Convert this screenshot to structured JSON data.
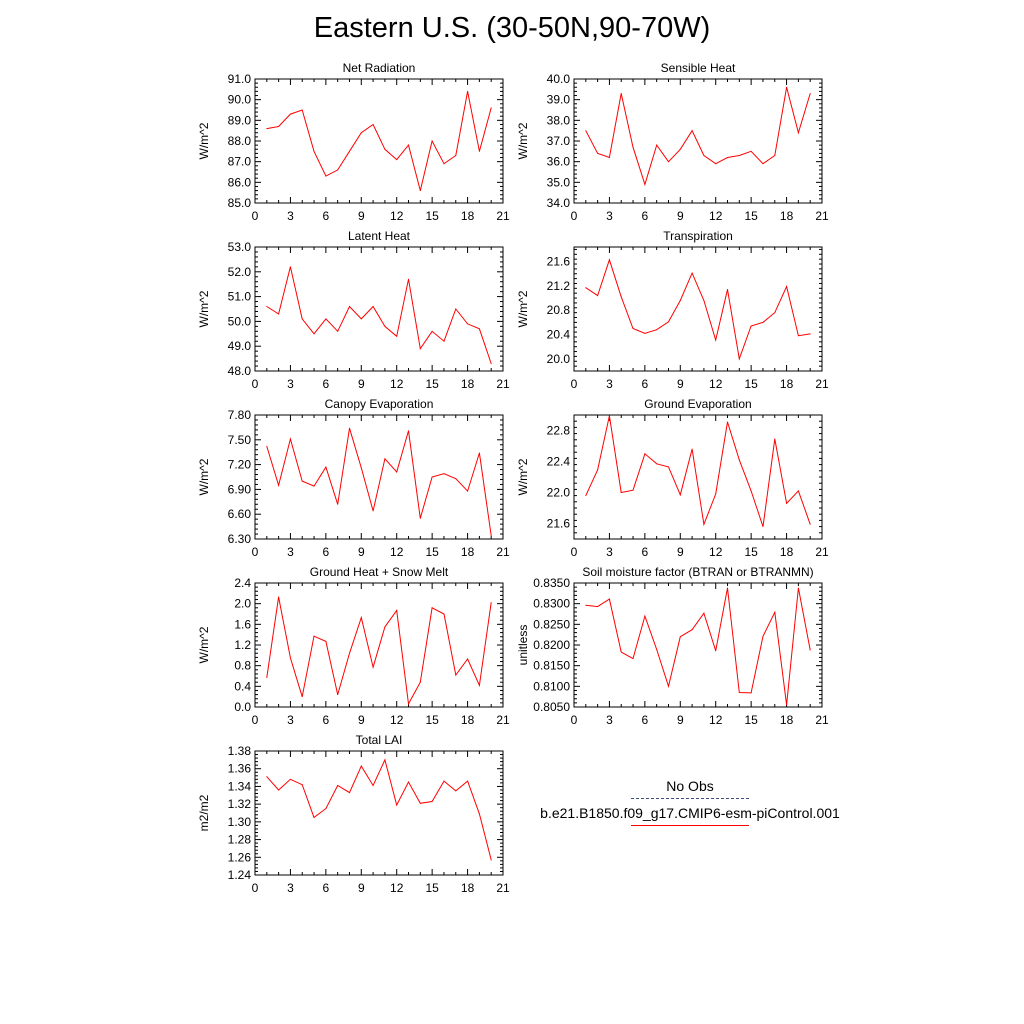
{
  "page_title": "Eastern U.S. (30-50N,90-70W)",
  "legend": {
    "obs_label": "No Obs",
    "model_label": "b.e21.B1850.f09_g17.CMIP6-esm-piControl.001",
    "obs_color": "#3d4f7a",
    "model_color": "#ff0000"
  },
  "chart_data": [
    {
      "type": "line",
      "title": "Net Radiation",
      "ylabel": "W/m^2",
      "xlim": [
        0,
        21
      ],
      "ylim": [
        85.0,
        91.0
      ],
      "xticks": [
        "0",
        "3",
        "6",
        "9",
        "12",
        "15",
        "18",
        "21"
      ],
      "yticks": [
        "85.0",
        "86.0",
        "87.0",
        "88.0",
        "89.0",
        "90.0",
        "91.0"
      ],
      "series": [
        {
          "color": "#ff0000",
          "x": [
            1,
            2,
            3,
            4,
            5,
            6,
            7,
            8,
            9,
            10,
            11,
            12,
            13,
            14,
            15,
            16,
            17,
            18,
            19,
            20
          ],
          "values": [
            88.6,
            88.7,
            89.3,
            89.5,
            87.5,
            86.3,
            86.6,
            87.5,
            88.4,
            88.8,
            87.6,
            87.1,
            87.8,
            85.6,
            88.0,
            86.9,
            87.3,
            90.4,
            87.5,
            89.6
          ]
        }
      ]
    },
    {
      "type": "line",
      "title": "Sensible Heat",
      "ylabel": "W/m^2",
      "xlim": [
        0,
        21
      ],
      "ylim": [
        34.0,
        40.0
      ],
      "xticks": [
        "0",
        "3",
        "6",
        "9",
        "12",
        "15",
        "18",
        "21"
      ],
      "yticks": [
        "34.0",
        "35.0",
        "36.0",
        "37.0",
        "38.0",
        "39.0",
        "40.0"
      ],
      "series": [
        {
          "color": "#ff0000",
          "x": [
            1,
            2,
            3,
            4,
            5,
            6,
            7,
            8,
            9,
            10,
            11,
            12,
            13,
            14,
            15,
            16,
            17,
            18,
            19,
            20
          ],
          "values": [
            37.5,
            36.4,
            36.2,
            39.3,
            36.7,
            34.9,
            36.8,
            36.0,
            36.6,
            37.5,
            36.3,
            35.9,
            36.2,
            36.3,
            36.5,
            35.9,
            36.3,
            39.6,
            37.4,
            39.3
          ]
        }
      ]
    },
    {
      "type": "line",
      "title": "Latent Heat",
      "ylabel": "W/m^2",
      "xlim": [
        0,
        21
      ],
      "ylim": [
        48.0,
        53.0
      ],
      "xticks": [
        "0",
        "3",
        "6",
        "9",
        "12",
        "15",
        "18",
        "21"
      ],
      "yticks": [
        "48.0",
        "49.0",
        "50.0",
        "51.0",
        "52.0",
        "53.0"
      ],
      "series": [
        {
          "color": "#ff0000",
          "x": [
            1,
            2,
            3,
            4,
            5,
            6,
            7,
            8,
            9,
            10,
            11,
            12,
            13,
            14,
            15,
            16,
            17,
            18,
            19,
            20
          ],
          "values": [
            50.6,
            50.3,
            52.2,
            50.1,
            49.5,
            50.1,
            49.6,
            50.6,
            50.1,
            50.6,
            49.8,
            49.4,
            51.7,
            48.9,
            49.6,
            49.2,
            50.5,
            49.9,
            49.7,
            48.3
          ]
        }
      ]
    },
    {
      "type": "line",
      "title": "Transpiration",
      "ylabel": "W/m^2",
      "xlim": [
        0,
        21
      ],
      "ylim": [
        19.8,
        21.84
      ],
      "xticks": [
        "0",
        "3",
        "6",
        "9",
        "12",
        "15",
        "18",
        "21"
      ],
      "yticks": [
        "20.0",
        "20.4",
        "20.8",
        "21.2",
        "21.6"
      ],
      "series": [
        {
          "color": "#ff0000",
          "x": [
            1,
            2,
            3,
            4,
            5,
            6,
            7,
            8,
            9,
            10,
            11,
            12,
            13,
            14,
            15,
            16,
            17,
            18,
            19,
            20
          ],
          "values": [
            21.17,
            21.04,
            21.63,
            21.02,
            20.5,
            20.42,
            20.48,
            20.61,
            20.96,
            21.41,
            20.96,
            20.31,
            21.14,
            20.0,
            20.54,
            20.6,
            20.76,
            21.19,
            20.38,
            20.41
          ]
        }
      ]
    },
    {
      "type": "line",
      "title": "Canopy Evaporation",
      "ylabel": "W/m^2",
      "xlim": [
        0,
        21
      ],
      "ylim": [
        6.3,
        7.8
      ],
      "xticks": [
        "0",
        "3",
        "6",
        "9",
        "12",
        "15",
        "18",
        "21"
      ],
      "yticks": [
        "6.30",
        "6.60",
        "6.90",
        "7.20",
        "7.50",
        "7.80"
      ],
      "series": [
        {
          "color": "#ff0000",
          "x": [
            1,
            2,
            3,
            4,
            5,
            6,
            7,
            8,
            9,
            10,
            11,
            12,
            13,
            14,
            15,
            16,
            17,
            18,
            19,
            20
          ],
          "values": [
            7.42,
            6.95,
            7.51,
            7.0,
            6.94,
            7.17,
            6.72,
            7.64,
            7.16,
            6.64,
            7.27,
            7.11,
            7.61,
            6.55,
            7.05,
            7.09,
            7.03,
            6.88,
            7.34,
            6.34
          ]
        }
      ]
    },
    {
      "type": "line",
      "title": "Ground Evaporation",
      "ylabel": "W/m^2",
      "xlim": [
        0,
        21
      ],
      "ylim": [
        21.4,
        23.0
      ],
      "xticks": [
        "0",
        "3",
        "6",
        "9",
        "12",
        "15",
        "18",
        "21"
      ],
      "yticks": [
        "21.6",
        "22.0",
        "22.4",
        "22.8"
      ],
      "series": [
        {
          "color": "#ff0000",
          "x": [
            1,
            2,
            3,
            4,
            5,
            6,
            7,
            8,
            9,
            10,
            11,
            12,
            13,
            14,
            15,
            16,
            17,
            18,
            19,
            20
          ],
          "values": [
            21.96,
            22.29,
            22.99,
            22.0,
            22.03,
            22.5,
            22.37,
            22.33,
            21.97,
            22.56,
            21.59,
            21.98,
            22.91,
            22.42,
            22.02,
            21.56,
            22.69,
            21.86,
            22.02,
            21.59
          ]
        }
      ]
    },
    {
      "type": "line",
      "title": "Ground Heat + Snow Melt",
      "ylabel": "W/m^2",
      "xlim": [
        0,
        21
      ],
      "ylim": [
        0.0,
        2.4
      ],
      "xticks": [
        "0",
        "3",
        "6",
        "9",
        "12",
        "15",
        "18",
        "21"
      ],
      "yticks": [
        "0.0",
        "0.4",
        "0.8",
        "1.2",
        "1.6",
        "2.0",
        "2.4"
      ],
      "series": [
        {
          "color": "#ff0000",
          "x": [
            1,
            2,
            3,
            4,
            5,
            6,
            7,
            8,
            9,
            10,
            11,
            12,
            13,
            14,
            15,
            16,
            17,
            18,
            19,
            20
          ],
          "values": [
            0.57,
            2.13,
            0.95,
            0.2,
            1.37,
            1.27,
            0.24,
            1.04,
            1.73,
            0.77,
            1.55,
            1.87,
            0.06,
            0.48,
            1.92,
            1.8,
            0.62,
            0.93,
            0.42,
            2.02
          ]
        }
      ]
    },
    {
      "type": "line",
      "title": "Soil moisture factor (BTRAN or BTRANMN)",
      "ylabel": "unitless",
      "xlim": [
        0,
        21
      ],
      "ylim": [
        0.805,
        0.835
      ],
      "xticks": [
        "0",
        "3",
        "6",
        "9",
        "12",
        "15",
        "18",
        "21"
      ],
      "yticks": [
        "0.8050",
        "0.8100",
        "0.8150",
        "0.8200",
        "0.8250",
        "0.8300",
        "0.8350"
      ],
      "series": [
        {
          "color": "#ff0000",
          "x": [
            1,
            2,
            3,
            4,
            5,
            6,
            7,
            8,
            9,
            10,
            11,
            12,
            13,
            14,
            15,
            16,
            17,
            18,
            19,
            20
          ],
          "values": [
            0.8296,
            0.8293,
            0.8311,
            0.8183,
            0.8167,
            0.827,
            0.8189,
            0.81,
            0.822,
            0.8237,
            0.8277,
            0.8186,
            0.8338,
            0.8085,
            0.8084,
            0.8221,
            0.8279,
            0.8055,
            0.8338,
            0.8188
          ]
        }
      ]
    },
    {
      "type": "line",
      "title": "Total LAI",
      "ylabel": "m2/m2",
      "xlim": [
        0,
        21
      ],
      "ylim": [
        1.24,
        1.38
      ],
      "xticks": [
        "0",
        "3",
        "6",
        "9",
        "12",
        "15",
        "18",
        "21"
      ],
      "yticks": [
        "1.24",
        "1.26",
        "1.28",
        "1.30",
        "1.32",
        "1.34",
        "1.36",
        "1.38"
      ],
      "series": [
        {
          "color": "#ff0000",
          "x": [
            1,
            2,
            3,
            4,
            5,
            6,
            7,
            8,
            9,
            10,
            11,
            12,
            13,
            14,
            15,
            16,
            17,
            18,
            19,
            20
          ],
          "values": [
            1.351,
            1.336,
            1.348,
            1.342,
            1.305,
            1.315,
            1.341,
            1.333,
            1.363,
            1.341,
            1.37,
            1.319,
            1.345,
            1.321,
            1.323,
            1.346,
            1.335,
            1.346,
            1.309,
            1.257
          ]
        }
      ]
    }
  ]
}
